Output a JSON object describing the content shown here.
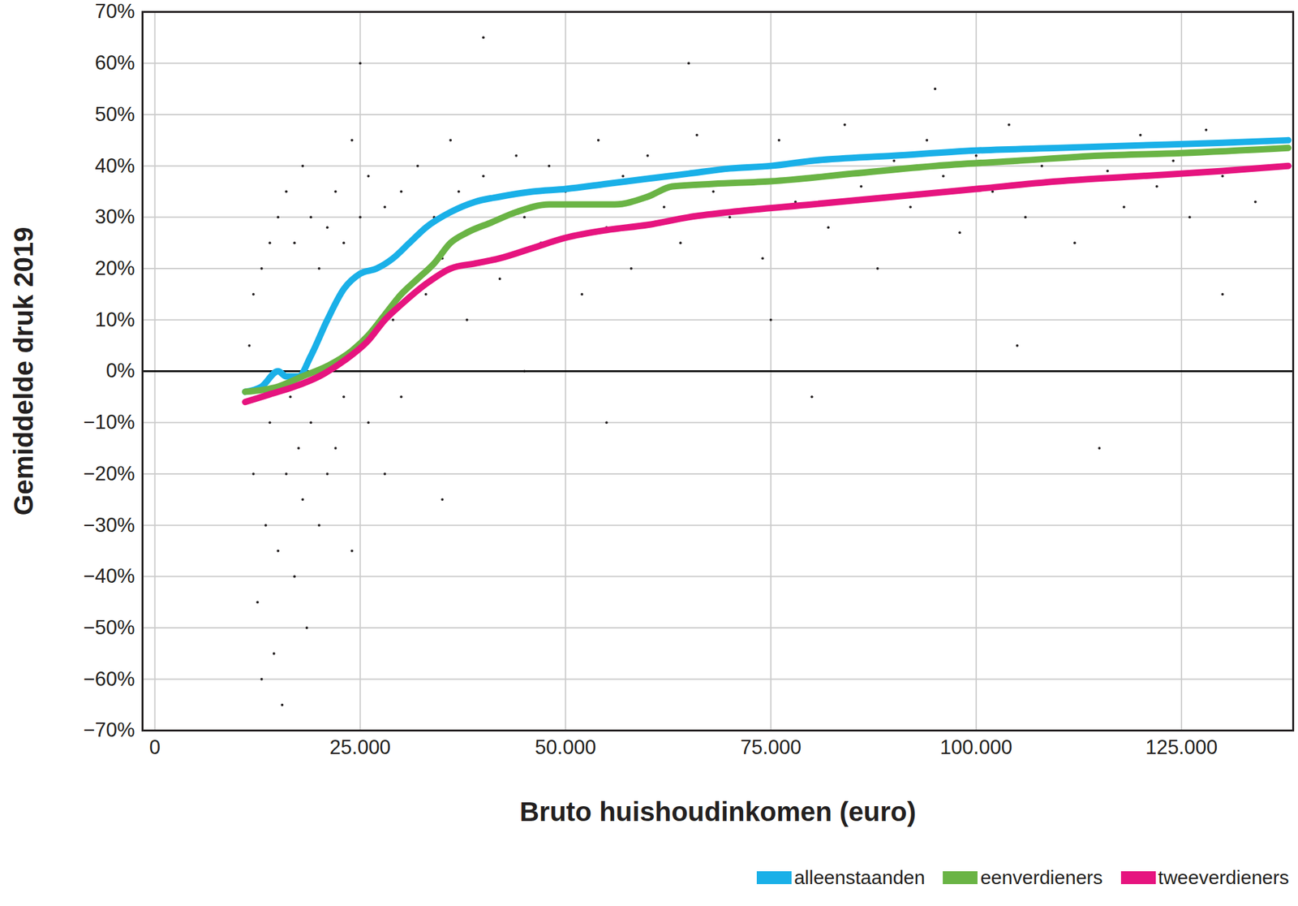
{
  "chart_data": {
    "type": "scatter",
    "x_label": "Bruto huishoudinkomen (euro)",
    "y_label": "Gemiddelde druk 2019",
    "xlim": [
      -1500,
      138600
    ],
    "ylim": [
      -70,
      70
    ],
    "xticks": [
      0,
      {
        "value": 25000,
        "label": "25.000"
      },
      {
        "value": 50000,
        "label": "50.000"
      },
      {
        "value": 75000,
        "label": "75.000"
      },
      {
        "value": 100000,
        "label": "100.000"
      },
      {
        "value": 125000,
        "label": "125.000"
      }
    ],
    "yticks": [
      {
        "value": -70,
        "label": "−70%"
      },
      {
        "value": -60,
        "label": "−60%"
      },
      {
        "value": -50,
        "label": "−50%"
      },
      {
        "value": -40,
        "label": "−40%"
      },
      {
        "value": -30,
        "label": "−30%"
      },
      {
        "value": -20,
        "label": "−20%"
      },
      {
        "value": -10,
        "label": "−10%"
      },
      {
        "value": 0,
        "label": "0%"
      },
      {
        "value": 10,
        "label": "10%"
      },
      {
        "value": 20,
        "label": "20%"
      },
      {
        "value": 30,
        "label": "30%"
      },
      {
        "value": 40,
        "label": "40%"
      },
      {
        "value": 50,
        "label": "50%"
      },
      {
        "value": 60,
        "label": "60%"
      },
      {
        "value": 70,
        "label": "70%"
      }
    ],
    "grid": true,
    "legend": "bottom-right",
    "points": {
      "color": "#231f20",
      "marker": "dot",
      "xy": [
        [
          12000,
          -20
        ],
        [
          12500,
          -45
        ],
        [
          13000,
          -60
        ],
        [
          13500,
          -30
        ],
        [
          14000,
          -10
        ],
        [
          14500,
          -55
        ],
        [
          15000,
          -35
        ],
        [
          15500,
          -65
        ],
        [
          16000,
          -20
        ],
        [
          16500,
          -5
        ],
        [
          17000,
          -40
        ],
        [
          17500,
          -15
        ],
        [
          18000,
          -25
        ],
        [
          18500,
          -50
        ],
        [
          19000,
          -10
        ],
        [
          20000,
          -30
        ],
        [
          21000,
          -20
        ],
        [
          22000,
          -15
        ],
        [
          23000,
          -5
        ],
        [
          24000,
          -35
        ],
        [
          26000,
          -10
        ],
        [
          28000,
          -20
        ],
        [
          30000,
          -5
        ],
        [
          11500,
          5
        ],
        [
          12000,
          15
        ],
        [
          13000,
          20
        ],
        [
          14000,
          25
        ],
        [
          15000,
          30
        ],
        [
          16000,
          35
        ],
        [
          17000,
          25
        ],
        [
          18000,
          40
        ],
        [
          19000,
          30
        ],
        [
          20000,
          20
        ],
        [
          21000,
          28
        ],
        [
          22000,
          35
        ],
        [
          23000,
          25
        ],
        [
          24000,
          45
        ],
        [
          25000,
          30
        ],
        [
          26000,
          38
        ],
        [
          27000,
          20
        ],
        [
          28000,
          32
        ],
        [
          29000,
          10
        ],
        [
          30000,
          35
        ],
        [
          31000,
          25
        ],
        [
          32000,
          40
        ],
        [
          33000,
          15
        ],
        [
          34000,
          30
        ],
        [
          35000,
          22
        ],
        [
          36000,
          45
        ],
        [
          37000,
          35
        ],
        [
          38000,
          10
        ],
        [
          39000,
          28
        ],
        [
          40000,
          38
        ],
        [
          42000,
          18
        ],
        [
          44000,
          42
        ],
        [
          45000,
          30
        ],
        [
          47000,
          25
        ],
        [
          48000,
          40
        ],
        [
          50000,
          35
        ],
        [
          52000,
          15
        ],
        [
          54000,
          45
        ],
        [
          55000,
          28
        ],
        [
          57000,
          38
        ],
        [
          58000,
          20
        ],
        [
          60000,
          42
        ],
        [
          62000,
          32
        ],
        [
          64000,
          25
        ],
        [
          66000,
          46
        ],
        [
          68000,
          35
        ],
        [
          70000,
          30
        ],
        [
          72000,
          40
        ],
        [
          74000,
          22
        ],
        [
          76000,
          45
        ],
        [
          78000,
          33
        ],
        [
          80000,
          38
        ],
        [
          82000,
          28
        ],
        [
          84000,
          48
        ],
        [
          86000,
          36
        ],
        [
          88000,
          20
        ],
        [
          90000,
          41
        ],
        [
          92000,
          32
        ],
        [
          94000,
          45
        ],
        [
          96000,
          38
        ],
        [
          98000,
          27
        ],
        [
          100000,
          42
        ],
        [
          102000,
          35
        ],
        [
          104000,
          48
        ],
        [
          106000,
          30
        ],
        [
          108000,
          40
        ],
        [
          110000,
          37
        ],
        [
          112000,
          25
        ],
        [
          114000,
          44
        ],
        [
          116000,
          39
        ],
        [
          118000,
          32
        ],
        [
          120000,
          46
        ],
        [
          122000,
          36
        ],
        [
          124000,
          41
        ],
        [
          126000,
          30
        ],
        [
          128000,
          47
        ],
        [
          130000,
          38
        ],
        [
          132000,
          43
        ],
        [
          134000,
          33
        ],
        [
          136000,
          45
        ],
        [
          138000,
          40
        ],
        [
          65000,
          60
        ],
        [
          95000,
          55
        ],
        [
          40000,
          65
        ],
        [
          55000,
          -10
        ],
        [
          80000,
          -5
        ],
        [
          115000,
          -15
        ],
        [
          35000,
          -25
        ],
        [
          45000,
          0
        ],
        [
          25000,
          60
        ],
        [
          130000,
          15
        ],
        [
          75000,
          10
        ],
        [
          105000,
          5
        ]
      ]
    },
    "series": [
      {
        "name": "alleenstaanden",
        "color": "#1ab0e8",
        "type": "line",
        "x": [
          11000,
          13000,
          15000,
          16000,
          17500,
          19000,
          21000,
          23000,
          25000,
          27000,
          29000,
          31000,
          33000,
          36000,
          39000,
          42000,
          46000,
          50000,
          55000,
          60000,
          65000,
          70000,
          75000,
          80000,
          90000,
          100000,
          110000,
          120000,
          130000,
          138000
        ],
        "values": [
          -4,
          -3,
          0,
          -1,
          -1,
          3,
          10,
          16,
          19,
          20,
          22,
          25,
          28,
          31,
          33,
          34,
          35,
          35.5,
          36.5,
          37.5,
          38.5,
          39.5,
          40,
          41,
          42,
          43,
          43.5,
          44,
          44.5,
          45
        ]
      },
      {
        "name": "eenverdieners",
        "color": "#6ab445",
        "type": "line",
        "x": [
          11000,
          15000,
          18000,
          21000,
          24000,
          26000,
          28000,
          30000,
          32000,
          34000,
          36000,
          38000,
          41000,
          44000,
          48000,
          52000,
          56000,
          60000,
          63000,
          68000,
          75000,
          85000,
          95000,
          105000,
          115000,
          125000,
          138000
        ],
        "values": [
          -4,
          -3,
          -1,
          1,
          4,
          7,
          11,
          15,
          18,
          21,
          25,
          27,
          29,
          31,
          32.5,
          32.5,
          32.5,
          34,
          36,
          36.5,
          37,
          38.5,
          40,
          41,
          42,
          42.5,
          43.5
        ]
      },
      {
        "name": "tweeverdieners",
        "color": "#e6147f",
        "type": "line",
        "x": [
          11000,
          14000,
          17000,
          20000,
          23000,
          26000,
          28000,
          30000,
          33000,
          36000,
          39000,
          42000,
          46000,
          50000,
          55000,
          60000,
          65000,
          70000,
          80000,
          90000,
          100000,
          110000,
          120000,
          130000,
          138000
        ],
        "values": [
          -6,
          -4.5,
          -3,
          -1,
          2,
          6,
          10,
          13,
          17,
          20,
          21,
          22,
          24,
          26,
          27.5,
          28.5,
          30,
          31,
          32.5,
          34,
          35.5,
          37,
          38,
          39,
          40
        ]
      }
    ]
  }
}
